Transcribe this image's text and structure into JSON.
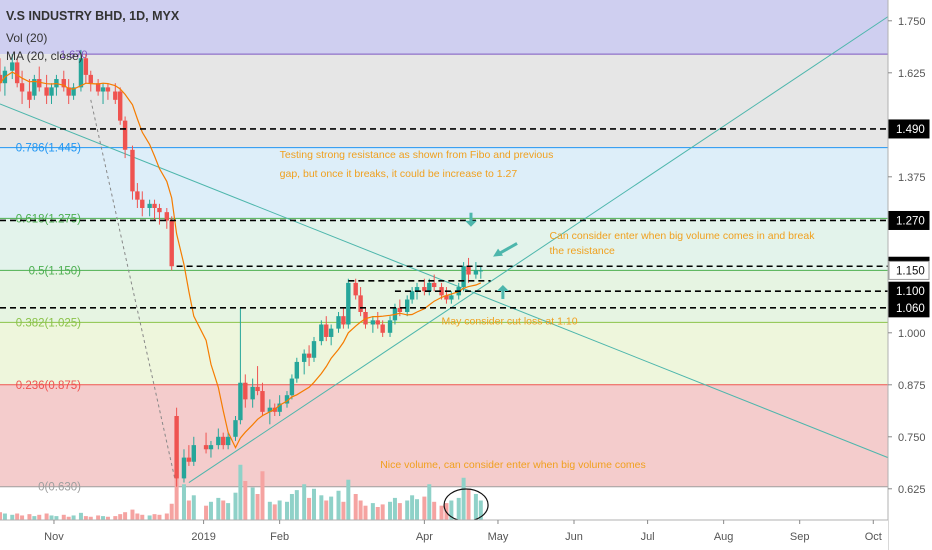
{
  "header": {
    "title": "V.S INDUSTRY BHD, 1D, MYX",
    "indicators": [
      "Vol (20)",
      "MA (20, close)"
    ],
    "ma_peek": "1.670"
  },
  "colors": {
    "up": "#26a69a",
    "down": "#ef5350",
    "ma": "#f57c00",
    "trendline": "#4db6ac",
    "annotation": "#f0a01e",
    "arrow": "#4db6ac",
    "axis_text": "#555555",
    "badge_bg": "#000000",
    "badge_current": "#ffffff"
  },
  "chart_data": {
    "type": "candlestick",
    "symbol": "V.S INDUSTRY BHD",
    "interval": "1D",
    "exchange": "MYX",
    "ylim": [
      0.55,
      1.8
    ],
    "y_ticks": [
      0.625,
      0.75,
      0.875,
      1.0,
      1.375,
      1.625,
      1.75
    ],
    "y_tick_labels": [
      "0.625",
      "0.750",
      "0.875",
      "1.000",
      "1.375",
      "1.625",
      "1.750"
    ],
    "x_labels": [
      {
        "label": "Nov",
        "date": "2018-11-01"
      },
      {
        "label": "2019",
        "date": "2019-01-01"
      },
      {
        "label": "Feb",
        "date": "2019-02-01"
      },
      {
        "label": "Apr",
        "date": "2019-04-01"
      },
      {
        "label": "May",
        "date": "2019-05-01"
      },
      {
        "label": "Jun",
        "date": "2019-06-01"
      },
      {
        "label": "Jul",
        "date": "2019-07-01"
      },
      {
        "label": "Aug",
        "date": "2019-08-01"
      },
      {
        "label": "Sep",
        "date": "2019-09-01"
      },
      {
        "label": "Oct",
        "date": "2019-10-01"
      }
    ],
    "xlim": [
      "2018-10-10",
      "2019-10-07"
    ],
    "fib_levels": [
      {
        "ratio": "1",
        "price": 1.67,
        "label": ""
      },
      {
        "ratio": "0.786",
        "price": 1.445,
        "label": "0.786(1.445)",
        "color": "#2196f3",
        "fill": "#ddeef9"
      },
      {
        "ratio": "0.618",
        "price": 1.275,
        "label": "0.618(1.275)",
        "color": "#4caf50",
        "fill": "#e3f3eb"
      },
      {
        "ratio": "0.5",
        "price": 1.15,
        "label": "0.5(1.150)",
        "color": "#4caf50",
        "fill": "#e6f4e2"
      },
      {
        "ratio": "0.382",
        "price": 1.025,
        "label": "0.382(1.025)",
        "color": "#8bc34a",
        "fill": "#eef6dc"
      },
      {
        "ratio": "0.236",
        "price": 0.875,
        "label": "0.236(0.875)",
        "color": "#ef5350",
        "fill": "#f4cccc"
      },
      {
        "ratio": "0",
        "price": 0.63,
        "label": "0(0.630)",
        "color": "#9e9e9e",
        "fill": ""
      }
    ],
    "top_zones": [
      {
        "from": 1.67,
        "to": 1.8,
        "fill": "#cfcff0"
      },
      {
        "from": 1.445,
        "to": 1.67,
        "fill": "#e6e6e6"
      }
    ],
    "horizontal_levels": [
      {
        "price": 1.49,
        "label": "1.490",
        "from": "2018-10-10"
      },
      {
        "price": 1.27,
        "label": "1.270",
        "from": "2018-10-10"
      },
      {
        "price": 1.16,
        "label": "1.160",
        "from": "2018-12-21"
      },
      {
        "price": 1.1,
        "label": "1.100",
        "from": "2019-03-20"
      },
      {
        "price": 1.06,
        "label": "1.060",
        "from": "2018-10-10"
      }
    ],
    "dashed_short": [
      {
        "price": 1.125,
        "from": "2019-03-01",
        "to": "2019-04-28"
      }
    ],
    "current_price": {
      "price": 1.15,
      "label": "1.150"
    },
    "trendlines": [
      {
        "from": {
          "date": "2018-10-10",
          "price": 1.55
        },
        "to": {
          "date": "2019-10-07",
          "price": 0.7
        }
      },
      {
        "from": {
          "date": "2018-12-26",
          "price": 0.64
        },
        "to": {
          "date": "2019-10-07",
          "price": 1.76
        }
      }
    ],
    "candles_ohlc_1": [
      [
        "2018-10-10",
        1.62,
        1.66,
        1.58,
        1.6
      ],
      [
        "2018-10-12",
        1.6,
        1.64,
        1.57,
        1.63
      ],
      [
        "2018-10-15",
        1.63,
        1.67,
        1.61,
        1.65
      ],
      [
        "2018-10-17",
        1.65,
        1.66,
        1.59,
        1.6
      ],
      [
        "2018-10-19",
        1.6,
        1.63,
        1.55,
        1.58
      ],
      [
        "2018-10-22",
        1.58,
        1.61,
        1.54,
        1.56
      ],
      [
        "2018-10-24",
        1.57,
        1.62,
        1.56,
        1.61
      ],
      [
        "2018-10-26",
        1.61,
        1.64,
        1.58,
        1.59
      ],
      [
        "2018-10-29",
        1.59,
        1.62,
        1.55,
        1.57
      ],
      [
        "2018-10-31",
        1.57,
        1.6,
        1.55,
        1.59
      ],
      [
        "2018-11-02",
        1.59,
        1.62,
        1.57,
        1.61
      ],
      [
        "2018-11-05",
        1.61,
        1.63,
        1.58,
        1.59
      ],
      [
        "2018-11-07",
        1.59,
        1.61,
        1.55,
        1.57
      ],
      [
        "2018-11-09",
        1.57,
        1.6,
        1.56,
        1.59
      ],
      [
        "2018-11-12",
        1.59,
        1.68,
        1.58,
        1.66
      ],
      [
        "2018-11-14",
        1.66,
        1.67,
        1.6,
        1.62
      ],
      [
        "2018-11-16",
        1.62,
        1.63,
        1.58,
        1.6
      ],
      [
        "2018-11-19",
        1.6,
        1.61,
        1.57,
        1.58
      ],
      [
        "2018-11-21",
        1.58,
        1.6,
        1.55,
        1.59
      ],
      [
        "2018-11-23",
        1.59,
        1.6,
        1.56,
        1.58
      ],
      [
        "2018-11-26",
        1.58,
        1.6,
        1.55,
        1.56
      ],
      [
        "2018-11-28",
        1.58,
        1.59,
        1.5,
        1.51
      ],
      [
        "2018-11-30",
        1.51,
        1.52,
        1.42,
        1.44
      ],
      [
        "2018-12-03",
        1.44,
        1.45,
        1.32,
        1.34
      ],
      [
        "2018-12-05",
        1.34,
        1.36,
        1.3,
        1.32
      ],
      [
        "2018-12-07",
        1.32,
        1.34,
        1.28,
        1.3
      ],
      [
        "2018-12-10",
        1.3,
        1.32,
        1.28,
        1.31
      ],
      [
        "2018-12-12",
        1.31,
        1.32,
        1.27,
        1.3
      ],
      [
        "2018-12-14",
        1.3,
        1.31,
        1.26,
        1.29
      ],
      [
        "2018-12-17",
        1.29,
        1.3,
        1.25,
        1.27
      ],
      [
        "2018-12-19",
        1.27,
        1.28,
        1.15,
        1.16
      ]
    ],
    "candles_ohlc_2": [
      [
        "2018-12-21",
        0.8,
        0.82,
        0.63,
        0.65
      ],
      [
        "2018-12-24",
        0.65,
        0.72,
        0.64,
        0.7
      ],
      [
        "2018-12-26",
        0.7,
        0.73,
        0.68,
        0.69
      ],
      [
        "2018-12-28",
        0.69,
        0.75,
        0.68,
        0.73
      ],
      [
        "2019-01-02",
        0.73,
        0.76,
        0.71,
        0.72
      ],
      [
        "2019-01-04",
        0.72,
        0.74,
        0.7,
        0.73
      ],
      [
        "2019-01-07",
        0.73,
        0.77,
        0.72,
        0.75
      ],
      [
        "2019-01-09",
        0.75,
        0.76,
        0.72,
        0.73
      ],
      [
        "2019-01-11",
        0.73,
        0.76,
        0.72,
        0.75
      ],
      [
        "2019-01-14",
        0.75,
        0.8,
        0.74,
        0.79
      ],
      [
        "2019-01-16",
        0.79,
        1.06,
        0.78,
        0.88
      ],
      [
        "2019-01-18",
        0.88,
        0.9,
        0.82,
        0.84
      ],
      [
        "2019-01-21",
        0.84,
        0.89,
        0.82,
        0.87
      ],
      [
        "2019-01-23",
        0.87,
        0.92,
        0.85,
        0.86
      ],
      [
        "2019-01-25",
        0.86,
        0.88,
        0.8,
        0.81
      ],
      [
        "2019-01-28",
        0.81,
        0.84,
        0.78,
        0.82
      ],
      [
        "2019-01-30",
        0.82,
        0.83,
        0.8,
        0.81
      ],
      [
        "2019-02-01",
        0.81,
        0.85,
        0.8,
        0.83
      ],
      [
        "2019-02-04",
        0.83,
        0.86,
        0.82,
        0.85
      ],
      [
        "2019-02-06",
        0.85,
        0.9,
        0.84,
        0.89
      ],
      [
        "2019-02-08",
        0.89,
        0.94,
        0.88,
        0.93
      ],
      [
        "2019-02-11",
        0.93,
        0.96,
        0.9,
        0.95
      ],
      [
        "2019-02-13",
        0.95,
        0.97,
        0.92,
        0.94
      ],
      [
        "2019-02-15",
        0.94,
        0.99,
        0.93,
        0.98
      ],
      [
        "2019-02-18",
        0.98,
        1.03,
        0.97,
        1.02
      ],
      [
        "2019-02-20",
        1.02,
        1.04,
        0.98,
        0.99
      ],
      [
        "2019-02-22",
        0.99,
        1.02,
        0.97,
        1.01
      ],
      [
        "2019-02-25",
        1.01,
        1.05,
        1.0,
        1.04
      ],
      [
        "2019-02-27",
        1.04,
        1.06,
        1.01,
        1.02
      ],
      [
        "2019-03-01",
        1.02,
        1.13,
        1.01,
        1.12
      ],
      [
        "2019-03-04",
        1.12,
        1.13,
        1.08,
        1.09
      ],
      [
        "2019-03-06",
        1.09,
        1.11,
        1.04,
        1.05
      ],
      [
        "2019-03-08",
        1.05,
        1.06,
        1.01,
        1.02
      ],
      [
        "2019-03-11",
        1.02,
        1.04,
        1.0,
        1.03
      ],
      [
        "2019-03-13",
        1.03,
        1.05,
        1.01,
        1.02
      ],
      [
        "2019-03-15",
        1.02,
        1.03,
        0.99,
        1.0
      ],
      [
        "2019-03-18",
        1.0,
        1.04,
        0.99,
        1.03
      ],
      [
        "2019-03-20",
        1.03,
        1.07,
        1.02,
        1.06
      ],
      [
        "2019-03-22",
        1.06,
        1.08,
        1.04,
        1.05
      ],
      [
        "2019-03-25",
        1.05,
        1.09,
        1.04,
        1.08
      ],
      [
        "2019-03-27",
        1.08,
        1.11,
        1.07,
        1.1
      ],
      [
        "2019-03-29",
        1.1,
        1.12,
        1.08,
        1.11
      ],
      [
        "2019-04-01",
        1.11,
        1.13,
        1.09,
        1.1
      ],
      [
        "2019-04-03",
        1.1,
        1.13,
        1.09,
        1.12
      ],
      [
        "2019-04-05",
        1.12,
        1.14,
        1.1,
        1.11
      ],
      [
        "2019-04-08",
        1.11,
        1.12,
        1.08,
        1.09
      ],
      [
        "2019-04-10",
        1.09,
        1.11,
        1.07,
        1.08
      ],
      [
        "2019-04-12",
        1.08,
        1.1,
        1.07,
        1.09
      ],
      [
        "2019-04-15",
        1.09,
        1.12,
        1.08,
        1.11
      ],
      [
        "2019-04-17",
        1.11,
        1.17,
        1.1,
        1.16
      ],
      [
        "2019-04-19",
        1.16,
        1.18,
        1.12,
        1.14
      ],
      [
        "2019-04-22",
        1.14,
        1.17,
        1.13,
        1.15
      ],
      [
        "2019-04-24",
        1.15,
        1.16,
        1.13,
        1.15
      ]
    ],
    "volume_1": [
      [
        "2018-10-10",
        0.12
      ],
      [
        "2018-10-12",
        0.1
      ],
      [
        "2018-10-15",
        0.08
      ],
      [
        "2018-10-17",
        0.1
      ],
      [
        "2018-10-19",
        0.07
      ],
      [
        "2018-10-22",
        0.09
      ],
      [
        "2018-10-24",
        0.06
      ],
      [
        "2018-10-26",
        0.08
      ],
      [
        "2018-10-29",
        0.1
      ],
      [
        "2018-10-31",
        0.07
      ],
      [
        "2018-11-02",
        0.06
      ],
      [
        "2018-11-05",
        0.08
      ],
      [
        "2018-11-07",
        0.05
      ],
      [
        "2018-11-09",
        0.07
      ],
      [
        "2018-11-12",
        0.11
      ],
      [
        "2018-11-14",
        0.06
      ],
      [
        "2018-11-16",
        0.05
      ],
      [
        "2018-11-19",
        0.07
      ],
      [
        "2018-11-21",
        0.06
      ],
      [
        "2018-11-23",
        0.05
      ],
      [
        "2018-11-26",
        0.06
      ],
      [
        "2018-11-28",
        0.09
      ],
      [
        "2018-11-30",
        0.12
      ],
      [
        "2018-12-03",
        0.16
      ],
      [
        "2018-12-05",
        0.1
      ],
      [
        "2018-12-07",
        0.08
      ],
      [
        "2018-12-10",
        0.07
      ],
      [
        "2018-12-12",
        0.09
      ],
      [
        "2018-12-14",
        0.08
      ],
      [
        "2018-12-17",
        0.1
      ]
    ],
    "volume_2": [
      [
        "2018-12-19",
        0.25
      ],
      [
        "2018-12-21",
        1.0
      ],
      [
        "2018-12-24",
        0.55
      ],
      [
        "2018-12-26",
        0.3
      ],
      [
        "2018-12-28",
        0.38
      ],
      [
        "2019-01-02",
        0.22
      ],
      [
        "2019-01-04",
        0.28
      ],
      [
        "2019-01-07",
        0.34
      ],
      [
        "2019-01-09",
        0.3
      ],
      [
        "2019-01-11",
        0.26
      ],
      [
        "2019-01-14",
        0.42
      ],
      [
        "2019-01-16",
        0.85
      ],
      [
        "2019-01-18",
        0.6
      ],
      [
        "2019-01-21",
        0.5
      ],
      [
        "2019-01-23",
        0.4
      ],
      [
        "2019-01-25",
        0.75
      ],
      [
        "2019-01-28",
        0.28
      ],
      [
        "2019-01-30",
        0.24
      ],
      [
        "2019-02-01",
        0.3
      ],
      [
        "2019-02-04",
        0.28
      ],
      [
        "2019-02-06",
        0.4
      ],
      [
        "2019-02-08",
        0.46
      ],
      [
        "2019-02-11",
        0.55
      ],
      [
        "2019-02-13",
        0.34
      ],
      [
        "2019-02-15",
        0.48
      ],
      [
        "2019-02-18",
        0.38
      ],
      [
        "2019-02-20",
        0.3
      ],
      [
        "2019-02-22",
        0.36
      ],
      [
        "2019-02-25",
        0.45
      ],
      [
        "2019-02-27",
        0.28
      ],
      [
        "2019-03-01",
        0.62
      ],
      [
        "2019-03-04",
        0.4
      ],
      [
        "2019-03-06",
        0.3
      ],
      [
        "2019-03-08",
        0.22
      ],
      [
        "2019-03-11",
        0.26
      ],
      [
        "2019-03-13",
        0.2
      ],
      [
        "2019-03-15",
        0.24
      ],
      [
        "2019-03-18",
        0.28
      ],
      [
        "2019-03-20",
        0.34
      ],
      [
        "2019-03-22",
        0.26
      ],
      [
        "2019-03-25",
        0.3
      ],
      [
        "2019-03-27",
        0.38
      ],
      [
        "2019-03-29",
        0.32
      ],
      [
        "2019-04-01",
        0.36
      ],
      [
        "2019-04-03",
        0.55
      ],
      [
        "2019-04-05",
        0.28
      ],
      [
        "2019-04-08",
        0.22
      ],
      [
        "2019-04-10",
        0.26
      ],
      [
        "2019-04-12",
        0.3
      ],
      [
        "2019-04-15",
        0.34
      ],
      [
        "2019-04-17",
        0.65
      ],
      [
        "2019-04-19",
        0.48
      ],
      [
        "2019-04-22",
        0.4
      ],
      [
        "2019-04-24",
        0.3
      ]
    ],
    "annotations": [
      {
        "text": "Testing strong resistance as shown from Fibo and previous",
        "date": "2019-02-01",
        "price": 1.42
      },
      {
        "text": "gap, but once it breaks, it could be increase to 1.27",
        "date": "2019-02-01",
        "price": 1.375
      },
      {
        "text": "Can consider enter when big volume comes in and break",
        "date": "2019-05-22",
        "price": 1.225
      },
      {
        "text": "the resistance",
        "date": "2019-05-22",
        "price": 1.19
      },
      {
        "text": "May consider cut loss at 1.10",
        "date": "2019-04-08",
        "price": 1.02
      },
      {
        "text": "Nice volume, can consider enter when big volume comes",
        "date": "2019-03-14",
        "price": 0.675
      }
    ]
  }
}
